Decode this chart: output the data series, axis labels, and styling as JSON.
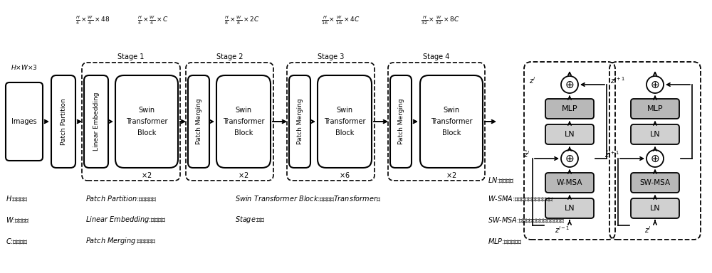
{
  "fig_width": 10.0,
  "fig_height": 3.84,
  "bg_color": "#ffffff",
  "gray_fill": "#b8b8b8",
  "light_gray": "#d0d0d0",
  "stage_labels": [
    "Stage 1",
    "Stage 2",
    "Stage 3",
    "Stage 4"
  ],
  "repeat_labels": [
    "×2",
    "×2",
    "×6",
    "×2"
  ],
  "dim_labels": [
    "$\\frac{H}{4}\\times\\frac{W}{4}\\times48$",
    "$\\frac{H}{4}\\times\\frac{W}{4}\\times C$",
    "$\\frac{H}{8}\\times\\frac{W}{8}\\times2C$",
    "$\\frac{H}{16}\\times\\frac{W}{16}\\times4C$",
    "$\\frac{H}{32}\\times\\frac{W}{32}\\times8C$"
  ],
  "legend_col1": [
    "$H$:图像高度",
    "$W$:图像宽度",
    "$C$:图像通道"
  ],
  "legend_col2": [
    "$\\it{Patch\\ Partition}$:图像块划分",
    "$\\it{Linear\\ Embedding}$:线性嵌入",
    "$\\it{Patch\\ Merging}$:图像块融合"
  ],
  "legend_col3": [
    "$\\it{Swin\\ Transformer\\ Block}$:移位窗口$\\it{Transformer}$块",
    "$\\it{Stage}$:阶段"
  ],
  "legend_col4": [
    "$\\it{LN}$:层归一化",
    "$\\it{W\\text{-}SMA}$:基于窗口的多头自注意力",
    "$\\it{SW\\text{-}MSA}$:基于移位窗口的多头自注意力",
    "$\\it{MLP}$:多层感知机"
  ]
}
